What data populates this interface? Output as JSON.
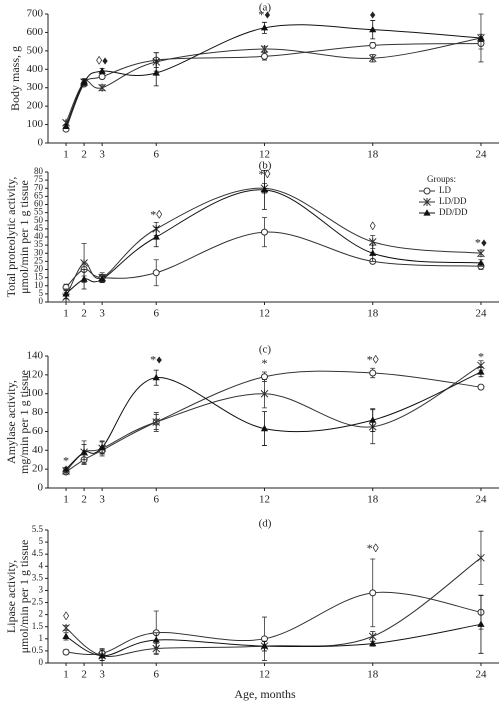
{
  "chart_data": [
    {
      "type": "line",
      "title": "(a)",
      "ylabel": [
        "Body mass, g"
      ],
      "x": [
        1,
        2,
        3,
        6,
        12,
        18,
        24
      ],
      "xlim": [
        0,
        25
      ],
      "xticks": [
        1,
        2,
        3,
        6,
        12,
        18,
        24
      ],
      "ylim": [
        0,
        700
      ],
      "yticks": [
        0,
        100,
        200,
        300,
        400,
        500,
        600,
        700
      ],
      "series": [
        {
          "color": "#333",
          "marker": "circle",
          "values": [
            75,
            320,
            360,
            450,
            470,
            530,
            540
          ],
          "errors": [
            8,
            10,
            10,
            40,
            20,
            15,
            30
          ]
        },
        {
          "color": "#333",
          "marker": "star",
          "values": [
            110,
            330,
            300,
            440,
            510,
            460,
            570
          ],
          "errors": [
            10,
            20,
            15,
            50,
            15,
            20,
            130
          ]
        },
        {
          "color": "#111",
          "marker": "triangle",
          "values": [
            90,
            330,
            390,
            380,
            625,
            615,
            570
          ],
          "errors": [
            10,
            15,
            15,
            70,
            30,
            50,
            20
          ]
        }
      ],
      "annotations": [
        {
          "text": "◊♦",
          "x": 3,
          "y": 440
        },
        {
          "text": "*♦",
          "x": 12,
          "y": 690
        },
        {
          "text": "♦",
          "x": 18,
          "y": 690
        }
      ]
    },
    {
      "type": "line",
      "title": "(b)",
      "ylabel": [
        "Total proteolytic activity,",
        "μmol/min per 1 g tissue"
      ],
      "x": [
        1,
        2,
        3,
        6,
        12,
        18,
        24
      ],
      "xlim": [
        0,
        25
      ],
      "xticks": [
        1,
        2,
        3,
        6,
        12,
        18,
        24
      ],
      "ylim": [
        0,
        80
      ],
      "yticks": [
        0,
        5,
        10,
        15,
        20,
        25,
        30,
        35,
        40,
        45,
        50,
        55,
        60,
        65,
        70,
        75,
        80
      ],
      "legend": "upper right",
      "legend_title": "Groups:",
      "series": [
        {
          "name": "LD",
          "color": "#333",
          "marker": "circle",
          "values": [
            9,
            20,
            15,
            18,
            43,
            25,
            22
          ],
          "errors": [
            2,
            4,
            2,
            8,
            9,
            1,
            2
          ]
        },
        {
          "name": "LD/DD",
          "color": "#333",
          "marker": "star",
          "values": [
            3,
            24,
            15,
            45,
            70,
            37,
            30
          ],
          "errors": [
            3,
            12,
            3,
            4,
            3,
            4,
            2
          ]
        },
        {
          "name": "DD/DD",
          "color": "#111",
          "marker": "triangle",
          "values": [
            5,
            14,
            14,
            40,
            69,
            30,
            24
          ],
          "errors": [
            3,
            6,
            2,
            6,
            12,
            5,
            2
          ]
        }
      ],
      "annotations": [
        {
          "text": "*◊",
          "x": 6,
          "y": 53
        },
        {
          "text": "*◊",
          "x": 12,
          "y": 78
        },
        {
          "text": "◊",
          "x": 18,
          "y": 46
        },
        {
          "text": "*♦",
          "x": 24,
          "y": 36
        }
      ]
    },
    {
      "type": "line",
      "title": "(c)",
      "ylabel": [
        "Amylase activity,",
        "mg/min per 1 g tissue"
      ],
      "x": [
        1,
        2,
        3,
        6,
        12,
        18,
        24
      ],
      "xlim": [
        0,
        25
      ],
      "xticks": [
        1,
        2,
        3,
        6,
        12,
        18,
        24
      ],
      "ylim": [
        0,
        140
      ],
      "yticks": [
        0,
        20,
        40,
        60,
        80,
        100,
        120,
        140
      ],
      "series": [
        {
          "color": "#333",
          "marker": "circle",
          "values": [
            17,
            30,
            40,
            70,
            118,
            122,
            107
          ],
          "errors": [
            2,
            5,
            4,
            8,
            5,
            5,
            2
          ]
        },
        {
          "color": "#333",
          "marker": "star",
          "values": [
            18,
            38,
            42,
            70,
            100,
            65,
            130
          ],
          "errors": [
            2,
            12,
            8,
            10,
            15,
            18,
            5
          ]
        },
        {
          "color": "#111",
          "marker": "triangle",
          "values": [
            20,
            38,
            43,
            117,
            63,
            72,
            123
          ],
          "errors": [
            2,
            8,
            6,
            8,
            18,
            12,
            5
          ]
        }
      ],
      "annotations": [
        {
          "text": "*",
          "x": 1,
          "y": 28
        },
        {
          "text": "*♦",
          "x": 6,
          "y": 135
        },
        {
          "text": "*",
          "x": 12,
          "y": 131
        },
        {
          "text": "*◊",
          "x": 18,
          "y": 135
        },
        {
          "text": "*",
          "x": 24,
          "y": 138
        }
      ]
    },
    {
      "type": "line",
      "title": "(d)",
      "ylabel": [
        "Lipase activity,",
        "μmol/min per 1 g tissue"
      ],
      "xlabel": "Age, months",
      "x": [
        1,
        3,
        6,
        12,
        18,
        24
      ],
      "xlim": [
        0,
        25
      ],
      "xticks": [
        1,
        2,
        3,
        6,
        12,
        18,
        24
      ],
      "ylim": [
        0,
        5.5
      ],
      "yticks": [
        0,
        0.5,
        1,
        1.5,
        2,
        2.5,
        3,
        3.5,
        4,
        4.5,
        5,
        5.5
      ],
      "series": [
        {
          "color": "#333",
          "marker": "circle",
          "values": [
            0.45,
            0.4,
            1.25,
            1.0,
            2.9,
            2.1
          ],
          "errors": [
            0.1,
            0.15,
            0.9,
            0.9,
            1.4,
            0.7
          ]
        },
        {
          "color": "#333",
          "marker": "star",
          "values": [
            1.45,
            0.3,
            0.6,
            0.7,
            1.1,
            4.35
          ],
          "errors": [
            0.1,
            0.3,
            0.2,
            0.2,
            0.2,
            1.1
          ]
        },
        {
          "color": "#111",
          "marker": "triangle",
          "values": [
            1.1,
            0.3,
            0.95,
            0.7,
            0.8,
            1.6
          ],
          "errors": [
            0.15,
            0.2,
            0.3,
            0.2,
            0.1,
            1.2
          ]
        }
      ],
      "annotations": [
        {
          "text": "◊",
          "x": 1,
          "y": 1.9
        },
        {
          "text": "*◊",
          "x": 18,
          "y": 4.7
        }
      ]
    }
  ]
}
